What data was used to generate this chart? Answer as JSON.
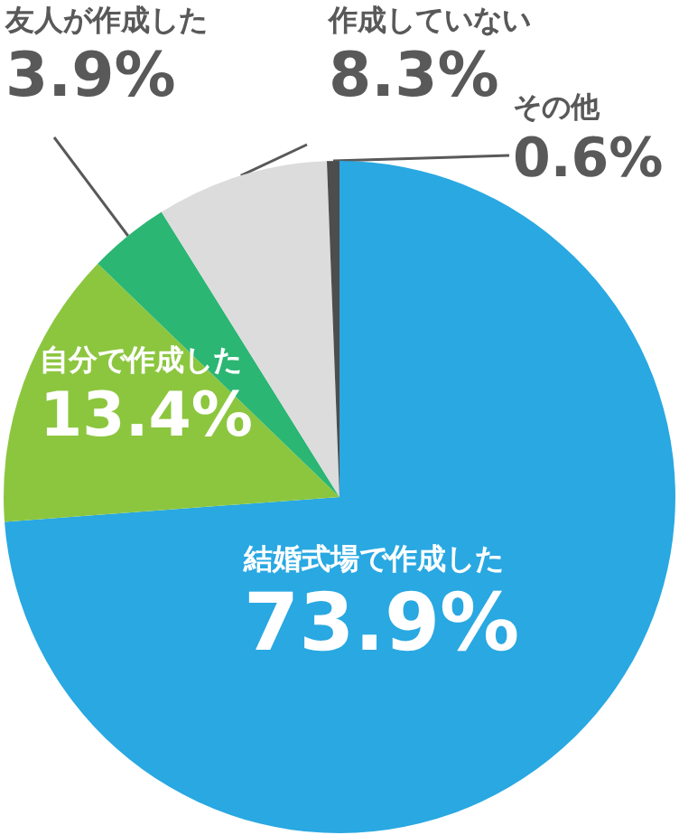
{
  "chart_data": {
    "type": "pie",
    "categories": [
      "結婚式場で作成した",
      "自分で作成した",
      "友人が作成した",
      "作成していない",
      "その他"
    ],
    "values": [
      73.9,
      13.4,
      3.9,
      8.3,
      0.6
    ],
    "value_labels": [
      "73.9%",
      "13.4%",
      "3.9%",
      "8.3%",
      "0.6%"
    ],
    "colors": [
      "#29a8e2",
      "#8cc63f",
      "#2bb673",
      "#dcdcdc",
      "#4d4d4d"
    ],
    "legend": false
  }
}
